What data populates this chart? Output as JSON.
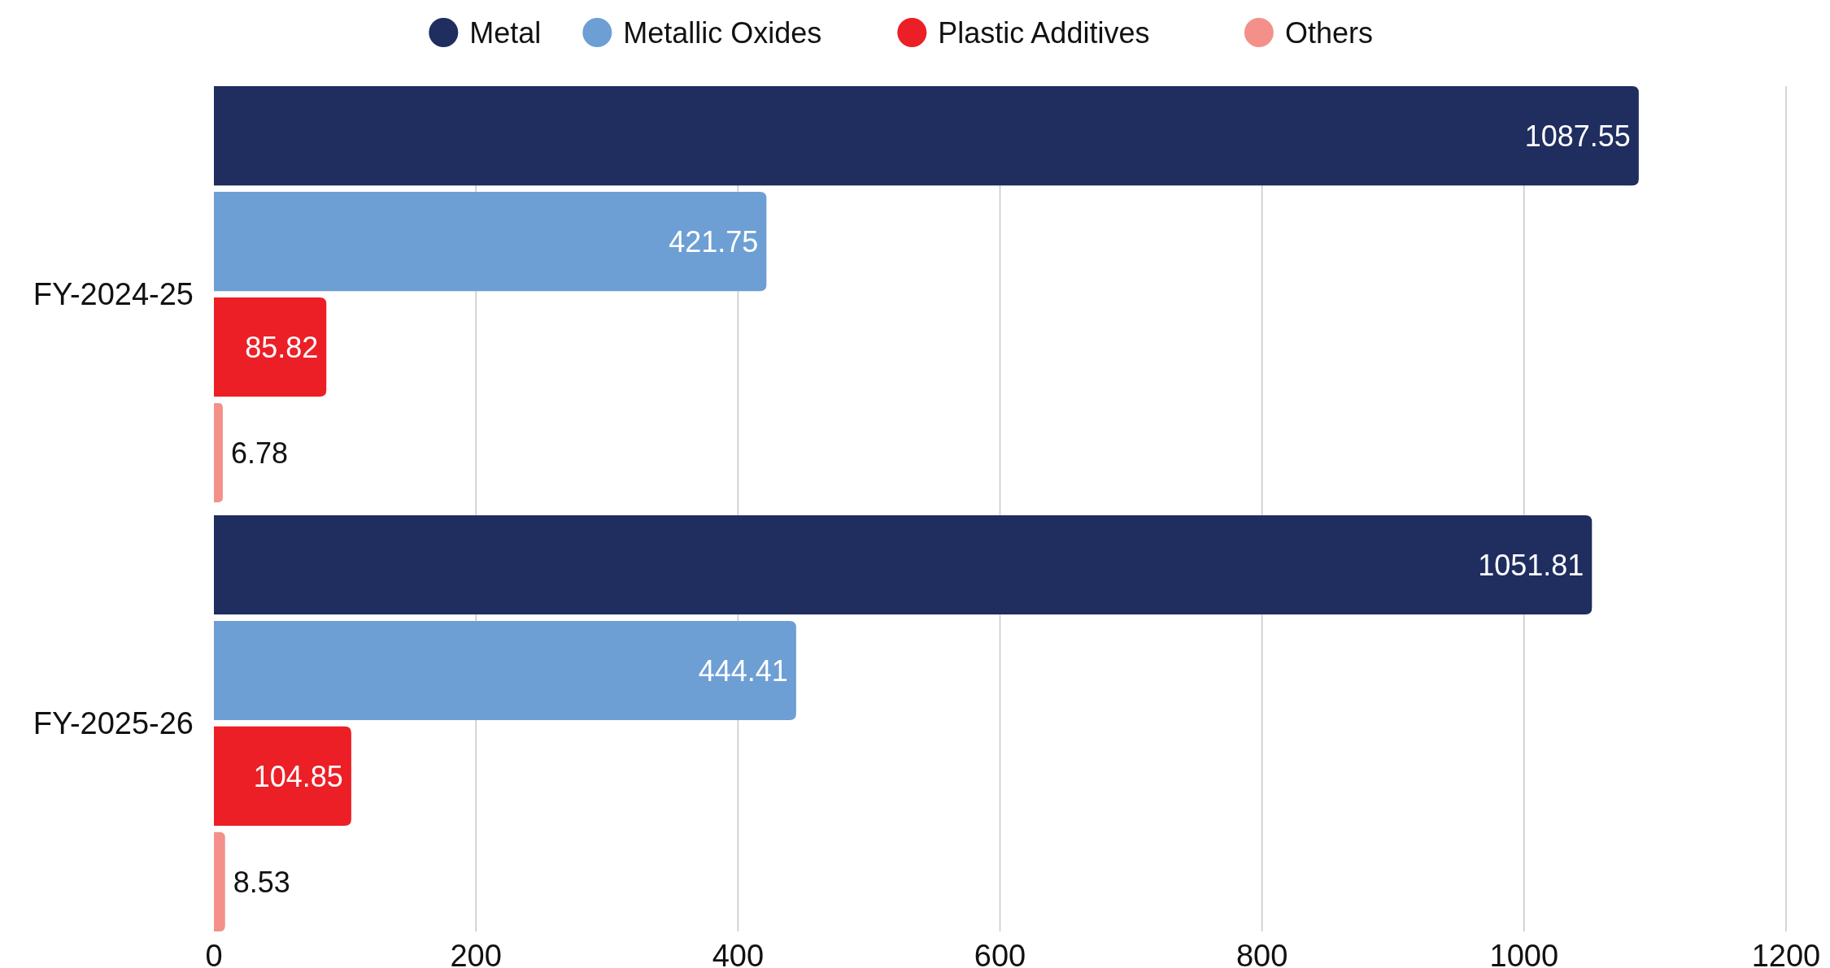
{
  "chart_data": {
    "type": "bar",
    "orientation": "horizontal",
    "categories": [
      "FY-2024-25",
      "FY-2025-26"
    ],
    "series": [
      {
        "name": "Metal",
        "color": "#1f2d5f",
        "values": [
          1087.55,
          1051.81
        ]
      },
      {
        "name": "Metallic Oxides",
        "color": "#6d9fd4",
        "values": [
          421.75,
          444.41
        ]
      },
      {
        "name": "Plastic Additives",
        "color": "#ec1f27",
        "values": [
          85.82,
          104.85
        ]
      },
      {
        "name": "Others",
        "color": "#f4908a",
        "values": [
          6.78,
          8.53
        ]
      }
    ],
    "xlim": [
      0,
      1200
    ],
    "xticks": [
      0,
      200,
      400,
      600,
      800,
      1000,
      1200
    ],
    "grid": "x",
    "legend": "top",
    "data_labels": true
  }
}
